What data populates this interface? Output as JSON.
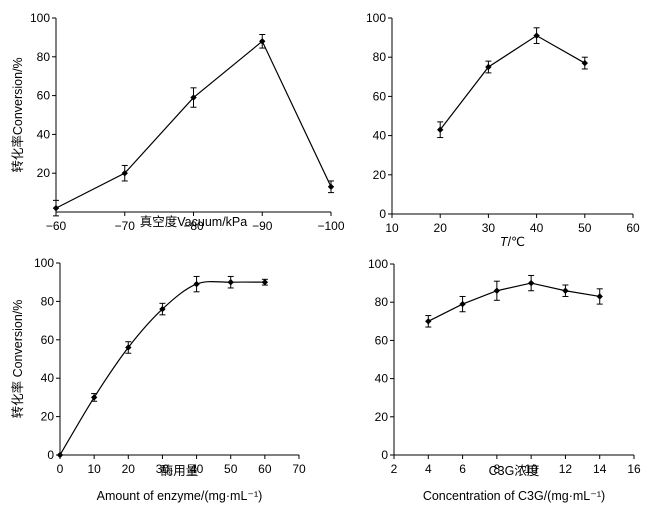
{
  "chart_data": [
    {
      "type": "line",
      "xlabel": "真空度Vacuum/kPa",
      "xlabel2": "",
      "ylabel": "转化率Conversion/%",
      "xlim": [
        -60,
        -100
      ],
      "ylim": [
        0,
        100
      ],
      "xticks": [
        -60,
        -70,
        -80,
        -90,
        -100
      ],
      "xtick_labels": [
        "−60",
        "−70",
        "−80",
        "−90",
        "−100"
      ],
      "yticks": [
        20,
        40,
        60,
        80,
        100
      ],
      "x": [
        -60,
        -70,
        -80,
        -90,
        -100
      ],
      "y": [
        2,
        20,
        59,
        88,
        13
      ],
      "err": [
        4,
        4,
        5,
        3.5,
        3
      ],
      "smooth": false
    },
    {
      "type": "line",
      "xlabel": "T/℃",
      "xlabel2": "",
      "ylabel": "",
      "xlim": [
        10,
        60
      ],
      "ylim": [
        0,
        100
      ],
      "xticks": [
        10,
        20,
        30,
        40,
        50,
        60
      ],
      "xtick_labels": [
        "10",
        "20",
        "30",
        "40",
        "50",
        "60"
      ],
      "yticks": [
        0,
        20,
        40,
        60,
        80,
        100
      ],
      "x": [
        20,
        30,
        40,
        50
      ],
      "y": [
        43,
        75,
        91,
        77
      ],
      "err": [
        4,
        3,
        4,
        3
      ],
      "smooth": false
    },
    {
      "type": "line",
      "xlabel": "酶用量",
      "xlabel2": "Amount of enzyme/(mg·mL⁻¹)",
      "ylabel": "转化率 Conversion/%",
      "xlim": [
        0,
        70
      ],
      "ylim": [
        0,
        100
      ],
      "xticks": [
        0,
        10,
        20,
        30,
        40,
        50,
        60,
        70
      ],
      "xtick_labels": [
        "0",
        "10",
        "20",
        "30",
        "40",
        "50",
        "60",
        "70"
      ],
      "yticks": [
        0,
        20,
        40,
        60,
        80,
        100
      ],
      "x": [
        0,
        10,
        20,
        30,
        40,
        50,
        60
      ],
      "y": [
        0,
        30,
        56,
        76,
        89,
        90,
        90
      ],
      "err": [
        0,
        2,
        3,
        3,
        4,
        3,
        1.5
      ],
      "smooth": true
    },
    {
      "type": "line",
      "xlabel": "C3G浓度",
      "xlabel2": "Concentration of C3G/(mg·mL⁻¹)",
      "ylabel": "",
      "xlim": [
        2,
        16
      ],
      "ylim": [
        0,
        100
      ],
      "xticks": [
        2,
        4,
        6,
        8,
        10,
        12,
        14,
        16
      ],
      "xtick_labels": [
        "2",
        "4",
        "6",
        "8",
        "10",
        "12",
        "14",
        "16"
      ],
      "yticks": [
        0,
        20,
        40,
        60,
        80,
        100
      ],
      "x": [
        4,
        6,
        8,
        10,
        12,
        14
      ],
      "y": [
        70,
        79,
        86,
        90,
        86,
        83
      ],
      "err": [
        3,
        4,
        5,
        4,
        3,
        4
      ],
      "smooth": false
    }
  ]
}
